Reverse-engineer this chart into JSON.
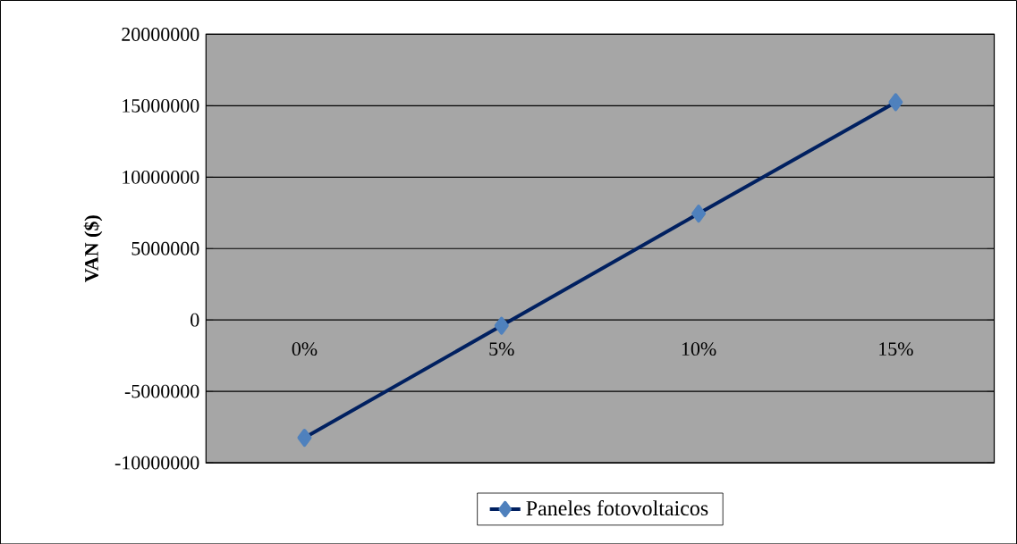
{
  "chart_data": {
    "type": "line",
    "ylabel": "VAN ($)",
    "categories": [
      "0%",
      "5%",
      "10%",
      "15%"
    ],
    "series": [
      {
        "name": "Paneles fotovoltaicos",
        "color": "#002060",
        "values": [
          -8250000,
          -400000,
          7450000,
          15250000
        ]
      }
    ],
    "ylim": [
      -10000000,
      20000000
    ],
    "yticks": [
      -10000000,
      -5000000,
      0,
      5000000,
      10000000,
      15000000,
      20000000
    ],
    "grid": "y",
    "legend": "bottom",
    "marker": "diamond",
    "line_style": "solid"
  }
}
